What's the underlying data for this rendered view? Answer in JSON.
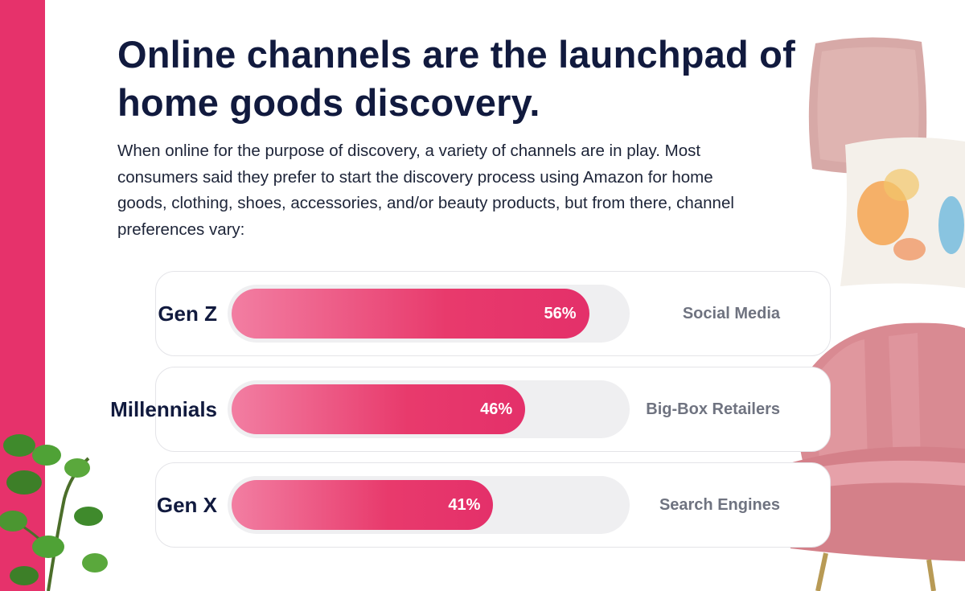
{
  "title": "Online channels are the launchpad of home goods discovery.",
  "intro": "When online for the purpose of discovery, a variety of channels are in play. Most consumers said they prefer to start the discovery process using Amazon for home goods, clothing, shoes, accessories, and/or beauty products, but from there, channel preferences vary:",
  "colors": {
    "accent": "#e6326b",
    "title": "#111a3e",
    "channel": "#6f7380"
  },
  "chart_data": {
    "type": "bar",
    "orientation": "horizontal",
    "categories": [
      "Gen Z",
      "Millennials",
      "Gen X"
    ],
    "values": [
      56,
      46,
      41
    ],
    "value_labels": [
      "56%",
      "46%",
      "41%"
    ],
    "channels": [
      "Social Media",
      "Big-Box Retailers",
      "Search Engines"
    ],
    "xlim": [
      0,
      100
    ]
  }
}
